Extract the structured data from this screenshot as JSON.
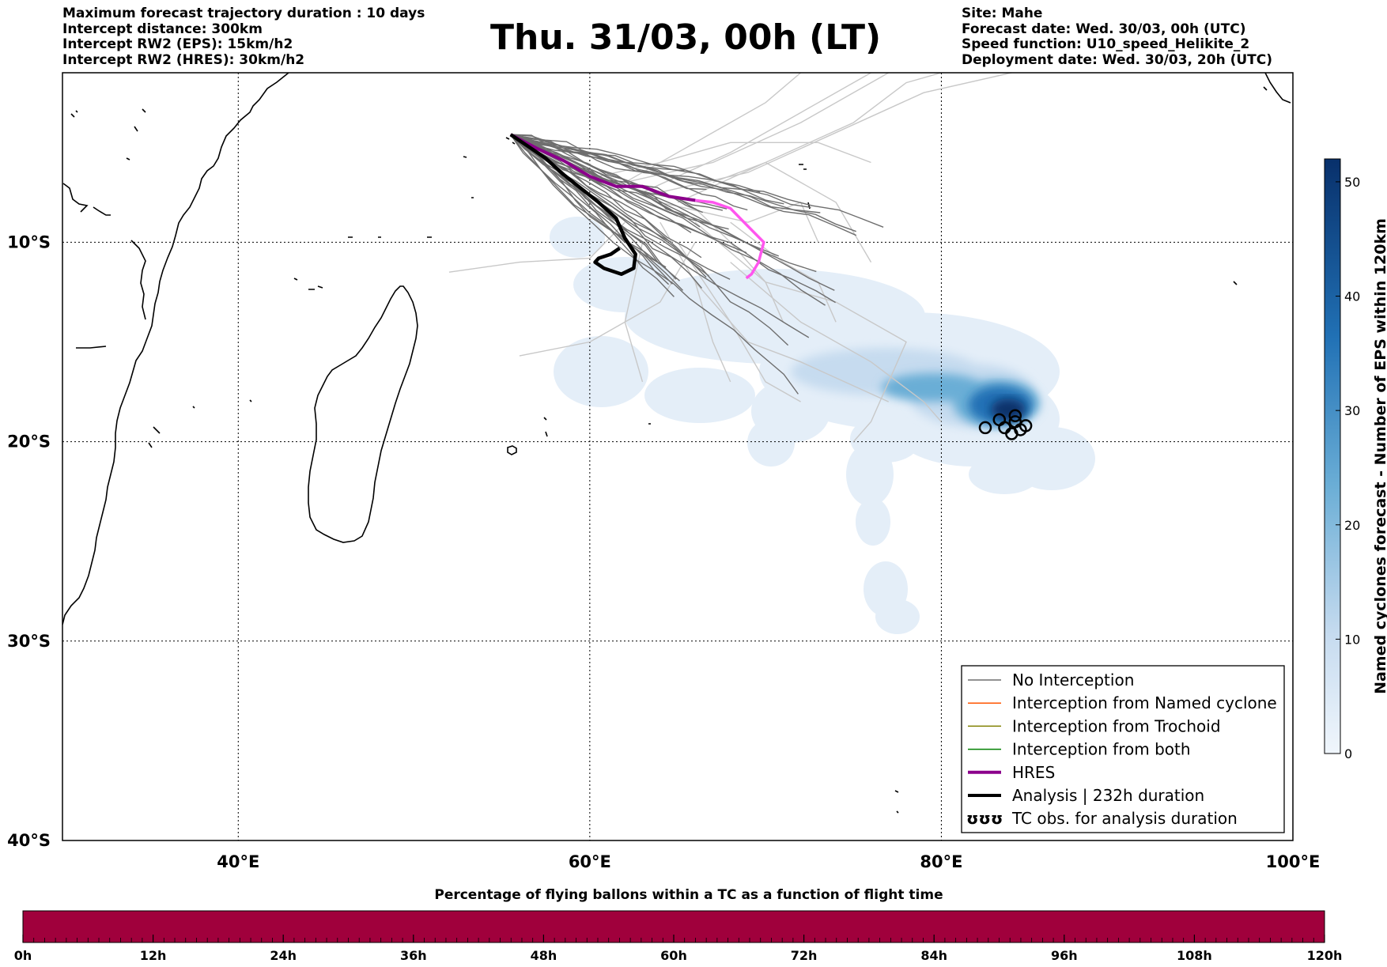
{
  "header": {
    "left_lines": [
      "Maximum forecast trajectory duration : 10 days",
      "Intercept distance: 300km",
      "Intercept RW2 (EPS):  15km/h2",
      "Intercept RW2 (HRES): 30km/h2"
    ],
    "title": "Thu. 31/03, 00h (LT)",
    "right_lines": [
      "Site: Mahe",
      "Forecast date: Wed. 30/03, 00h (UTC)",
      "Speed function: U10_speed_Helikite_2",
      "Deployment date: Wed. 30/03, 20h (UTC)"
    ]
  },
  "map": {
    "lon_range": [
      30,
      100
    ],
    "lat_range": [
      -40,
      -1.5
    ],
    "lon_ticks": [
      {
        "value": 40,
        "label": "40°E"
      },
      {
        "value": 60,
        "label": "60°E"
      },
      {
        "value": 80,
        "label": "80°E"
      },
      {
        "value": 100,
        "label": "100°E"
      }
    ],
    "lat_ticks": [
      {
        "value": -10,
        "label": "10°S"
      },
      {
        "value": -20,
        "label": "20°S"
      },
      {
        "value": -30,
        "label": "30°S"
      },
      {
        "value": -40,
        "label": "40°S"
      }
    ],
    "grid": "dotted",
    "colors": {
      "no_interception": "#6e6e6e",
      "faint_tracks": "#c8c8c8",
      "named_cyclone": "#ff5500",
      "trochoid": "#808000",
      "both": "#008000",
      "hres": "#8b008b",
      "hres_tail": "#ff55ee",
      "analysis": "#000000"
    },
    "hres_track": [
      [
        55.5,
        -4.6
      ],
      [
        57,
        -5.3
      ],
      [
        58.5,
        -5.9
      ],
      [
        60,
        -6.7
      ],
      [
        61.5,
        -7.2
      ],
      [
        63,
        -7.2
      ],
      [
        64.5,
        -7.7
      ],
      [
        66,
        -7.9
      ]
    ],
    "hres_tail_track": [
      [
        66,
        -7.9
      ],
      [
        67,
        -8.0
      ],
      [
        68,
        -8.3
      ],
      [
        69,
        -9.2
      ],
      [
        69.9,
        -10.0
      ],
      [
        69.6,
        -11.0
      ],
      [
        69.2,
        -11.6
      ],
      [
        68.9,
        -11.8
      ]
    ],
    "analysis_track": [
      [
        55.5,
        -4.6
      ],
      [
        56.5,
        -5.2
      ],
      [
        57.5,
        -5.8
      ],
      [
        58.5,
        -6.6
      ],
      [
        59.5,
        -7.3
      ],
      [
        60.5,
        -8.0
      ],
      [
        61.5,
        -8.8
      ],
      [
        62,
        -9.8
      ],
      [
        62.6,
        -10.6
      ],
      [
        62.5,
        -11.3
      ],
      [
        61.8,
        -11.6
      ],
      [
        60.8,
        -11.3
      ],
      [
        60.3,
        -11.0
      ],
      [
        60.5,
        -10.8
      ],
      [
        61.2,
        -10.6
      ],
      [
        61.7,
        -10.3
      ]
    ],
    "tc_obs": [
      [
        82.5,
        -19.3
      ],
      [
        83.3,
        -18.9
      ],
      [
        83.6,
        -19.3
      ],
      [
        84.0,
        -19.6
      ],
      [
        84.2,
        -19.0
      ],
      [
        84.5,
        -19.4
      ],
      [
        84.8,
        -19.2
      ],
      [
        84.2,
        -18.7
      ]
    ]
  },
  "legend": {
    "items": [
      {
        "label": "No Interception",
        "color": "#6e6e6e",
        "width": 1.5
      },
      {
        "label": "Interception from Named cyclone",
        "color": "#ff5500",
        "width": 1.5
      },
      {
        "label": "Interception from Trochoid",
        "color": "#808000",
        "width": 1.5
      },
      {
        "label": "Interception from both",
        "color": "#008000",
        "width": 1.5
      },
      {
        "label": "HRES",
        "color": "#8b008b",
        "width": 4
      },
      {
        "label": "Analysis | 232h duration",
        "color": "#000000",
        "width": 4
      },
      {
        "label": "TC obs. for analysis duration",
        "color": "#000000",
        "width": 0
      }
    ],
    "obs_symbol": "ʊʊʊ"
  },
  "colorbar": {
    "label": "Named cyclones forecast - Number of EPS within 120km",
    "range": [
      0,
      52
    ],
    "ticks": [
      "0",
      "10",
      "20",
      "30",
      "40",
      "50"
    ],
    "tick_values": [
      0,
      10,
      20,
      30,
      40,
      50
    ],
    "color_low": "#deebf7",
    "color_mid": "#6baed6",
    "color_high": "#08306b"
  },
  "bottom_bar": {
    "title": "Percentage of flying ballons within a TC as a function of flight time",
    "color": "#a0003c",
    "ticks": [
      "0h",
      "12h",
      "24h",
      "36h",
      "48h",
      "60h",
      "72h",
      "84h",
      "96h",
      "108h",
      "120h"
    ]
  }
}
